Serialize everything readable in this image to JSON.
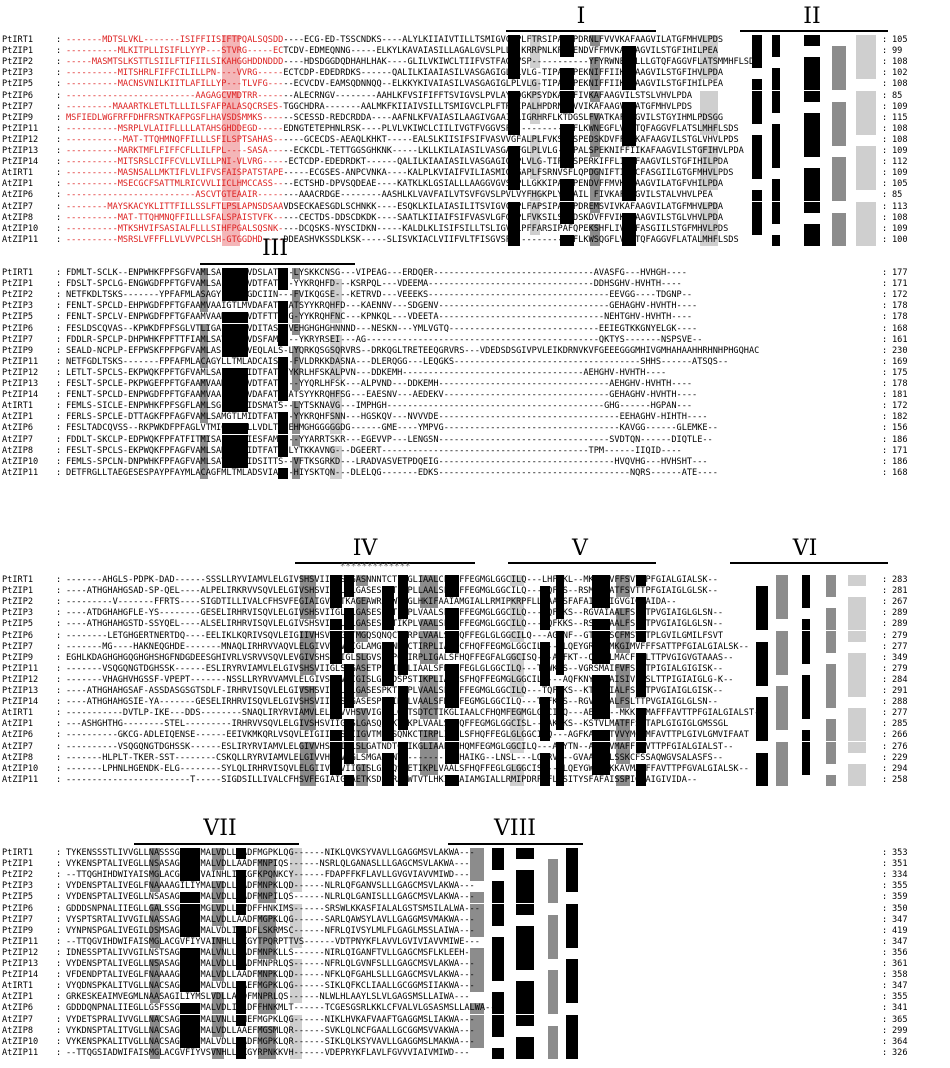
{
  "figure": {
    "domains": [
      "I",
      "II",
      "III",
      "IV",
      "V",
      "VI",
      "VII",
      "VIII"
    ],
    "sequence_names": [
      "PtIRT1",
      "PtZIP1",
      "PtZIP2",
      "PtZIP3",
      "PtZIP5",
      "PtZIP6",
      "PtZIP7",
      "PtZIP9",
      "PtZIP11",
      "PtZIP12",
      "PtZIP13",
      "PtZIP14",
      "AtIRT1",
      "AtZIP1",
      "AtZIP6",
      "AtZIP7",
      "AtZIP8",
      "AtZIP10",
      "AtZIP11"
    ],
    "blocks": [
      {
        "rows": [
          {
            "name": "PtIRT1",
            "seq": "-------MDTSLVKL-------ISIFFIISIFTPQALSQSDD----ECG-ED-TSSCNDKS----ALYLKIIAIVTILLTSMIGVCLPLFTRSIPALHPDRNLFVVVKAFAAGVILATGFMHVLPDS",
            "num": "105"
          },
          {
            "name": "PtZIP1",
            "seq": "----------MLKITPLLISIFLLYYP---STVRG-----ECTCDV-EDMEQNNG-----ELKYLKAVAIASILLAGALGVSLPLLG-KRRPNLKP--ENDVFFMVKAFAAGVILSTGFIHILPEA",
            "num": "99"
          },
          {
            "name": "PtZIP2",
            "seq": "-----MASMTSLKSTTLSIILFTIFIILSIKAHGGHDDNDDD----HDSDGGDQDHAHLHAK----GLILVKIWCLTIIFVSTFAGGVSP-----------YFYRWNESFLLLGTQFAGGVFLATSMMHFLSDS",
            "num": "108"
          },
          {
            "name": "PtZIP3",
            "seq": "----------MITSHRLFIFFCILILLPN----VVRG-----ECTCDP-EDEDRDKS------QALILKIAAIASILVASGAGIGLPLVLG-TIPALSPEKNIFFIIKAFAAGVILSTGFIHVLPDA",
            "num": "102"
          },
          {
            "name": "PtZIP5",
            "seq": "----------MACNSVNILKIITLAFILLYP---TLVFG-----ECVCDV-EAMSQDNNQQ--ELKKYKIVAIASILVASGAGIGLPLVLG-TIPALSPEKNIFFIIKAFAAGVILSTGFIHILPEA",
            "num": "108"
          },
          {
            "name": "PtZIP6",
            "seq": "-------------------------AAGAGCVMDTRR-------ALECRNGV--------AAHLKFVSIFIFFTSVIGVSLPVLAYLQGKPSYDKATLFIVKAFAAGVILSTSLVHVLPDA",
            "num": "85"
          },
          {
            "name": "PtZIP7",
            "seq": "---------MAAARTKLETLTLLLILSFAFPALASQCRSES-TGGCHDRA-------AALMKFKIIAIVSILLTSMIGVCLPLFTRSIPALHPDRNLFVVIKAFAAGVILATGFMHVLPDS",
            "num": "109"
          },
          {
            "name": "PtZIP9",
            "seq": "MSFIEDLWGFRFFDHFRSNTKAFPGSFLHAVSDSMMKS------SCESSD-REDCRDDA----AAFNLKFVAIASILAAGIVGAAIPLIGRHRFLKTDGSLFVATKAFAAGVILSTGYIHMLPDSGG",
            "num": "115"
          },
          {
            "name": "PtZIP11",
            "seq": "----------MSRPLVLAIIFLLLLATAHSGHDDEGD-----EDNGTETEPHNLRSK----PLVLVKIWCLCIILIVGTFVGGVSP-----------YFLKWNEGFLVLGTQFAGGVFLATSLMHFLSDS",
            "num": "108"
          },
          {
            "name": "PtZIP12",
            "seq": "-----------MAT-TTQHMNQFFILLLSFILSPTSAHAS------GCECDS-AEAQLKHKT-----EALSLKIISIFSIFVASVVGFALPLFVKSYLSPEDSKDVFFMIKAFAAGVILSTGLVHVLPDS",
            "num": "108"
          },
          {
            "name": "PtZIP13",
            "seq": "----------MARKTMFLFIFFCFLLILFPL----SASA-----ECKCDL-TETTGGSGHKNK-----LKLLKILAIASILVASGAGFGLPLVLG-TIPALSPEKNIFFIIKAFAAGVILSTGFIHVLPDA",
            "num": "109"
          },
          {
            "name": "PtZIP14",
            "seq": "----------MITSRSLCIFFCVLLVILLPNI-VLVRG-----ECTCDP-EDEDRDKT------QALILKIAAIASILVASGAGIGLPLVLG-TIPALSPERKIFFLIKAFAAGVILSTGFIHILPDA",
            "num": "112"
          },
          {
            "name": "AtIRT1",
            "seq": "----------MASNSALLMKTIFLVLIFVSFAISPATSTAPE-----ECGSES-ANPCVNKA----KALPLKVIAIFVILIASMIGVGAPLFSRNVSFLQPDGNIFTIIKCFASGIILGTGFMHVLPDS",
            "num": "109"
          },
          {
            "name": "AtZIP1",
            "seq": "----------MSECGCFSATTMLRICVVLIICLHMCCASS----ECTSHD-DPVSQDEAE----KATKLKLGSIALLLAAGGVGVSLPLLGKKIPALKPENDVFFMVKAFAAGVILATGFVHILPDA",
            "num": "105"
          },
          {
            "name": "AtZIP6",
            "seq": "-------------------------ASCVTGTEAAIR--------AAACRDGE--------AASHLKLVAVFAILVTSVFGVSLPVLVYFHGKPLYDKAIL FIVKAFAAGVILSTALVHVLPEA",
            "num": "85"
          },
          {
            "name": "AtZIP7",
            "seq": "--------MAYSKACYKLITTFILLSSLFTLPSLAPNSDSAAVDSECKAESGDLSCHNKK----ESQKLKILAIASILITSVIGVCLPLFAPSIPALGPDREMSVIVKAFAAGVILATGFMHVLPDA",
            "num": "113"
          },
          {
            "name": "AtZIP8",
            "seq": "----------MAT-TTQHMNQFFILLLSFALSPAISTVFK-----CECTDS-DDSCDKDK----SAATLKIIAIFSIFVASVLGFGLPLFVKSILSPEDSKDVFFVIKCFAAGVILSTGLVHVLPDA",
            "num": "108"
          },
          {
            "name": "AtZIP10",
            "seq": "----------MTKSHVIFSASIALFLLLSIHFPGALSQSNK----DCQSKS-NYSCIDKN-----KALDLKLISIFSILLTSLIGVCLPFFARSIPAFQPEKSHFLIVKSFASGIILSTGFMHVLPDS",
            "num": "109"
          },
          {
            "name": "AtZIP11",
            "seq": "----------MSRSLVFFFLLVLVVPCLSH-GTGGDHD----DDEASHVKSSDLKSK-----SLISVKIACLVIIFVLTFISGVSP-----------YFLKWSQGFLVLGTQFAGGVFLATALMHFLSDS",
            "num": "100"
          }
        ]
      },
      {
        "rows": [
          {
            "name": "PtIRT1",
            "seq": "FDMLT-SCLK--ENPWHKFPFSGFVAMLSAIATLMVDSLATS--LYSKKCNSG---VIPEAG---ERDQER-------------------------------AVASFG---HVHGH----",
            "num": "177"
          },
          {
            "name": "PtZIP1",
            "seq": "FDSLT-SPCLG-ENGWGDFPFTGFVAMLSAIGTLMVDTFATA--YYKRQHFD---KSRPQL---VDEEMA--------------------------------DDHSGHV-HVHTH----",
            "num": "171"
          },
          {
            "name": "PtZIP2",
            "seq": "NETFKDLTSKS-------YPFAFMLASAGYLLTMFGDCIIN---FVIKQGSE---KETRVD---VEEEKS-----------------------------------EEVGG----TDGNP--",
            "num": "172"
          },
          {
            "name": "PtZIP3",
            "seq": "FENLT-SPCLD-EHPWGDFPFTGFAAMVAAIGTLMVDAFATSYATSYYKRQHFD---KAENNV---SDGENV---------------------------------GEHAGHV-HVHTH----",
            "num": "178"
          },
          {
            "name": "PtZIP5",
            "seq": "FENLT-SPCLV-ENPWGDFPFTGFAAMVAAMGTLMVDTFTT--G-YYKRQHFNC---KPNKQL---VDEETA--------------------------------NEHTGHV-HVHTH----",
            "num": "178"
          },
          {
            "name": "PtZIP6",
            "seq": "FESLDSCQVAS--KPWKDFPFSGLVTLIGALLALLVDITASAHVEHGHGHGHNNND---NESKN---YMLVGTQ-----------------------------EEIEGTKKGNYELGK----",
            "num": "168"
          },
          {
            "name": "PtZIP7",
            "seq": "FDDLR-SPCLP-DHPWHKFPFTTFIAMLSAVFTLMVDSFAMI---YKRYRSEI---AG---------------------------------------------QKTYS-------NSPSVE--",
            "num": "161"
          },
          {
            "name": "PtZIP9",
            "seq": "SEALD-NCPLP-EFPWSKFPFPGFVAMLASLAALMVEQLALS-LYQRKQSGSQRVRS--DRKQGLTRETEEQGRVRS---VDEDSDSGIVPVLEIKDRNVKVFGEEEGGGMHIVGMHAHAAHHRHNHPHGQHAC",
            "num": "230"
          },
          {
            "name": "PtZIP11",
            "seq": "NETFGDLTSKS-------FPFAFMLACAGYLLTMLADCAIS---FVLDRKKDASNA---DLERQGG---LEQGKS------------------------------------SHHS------ATSQS--",
            "num": "169"
          },
          {
            "name": "PtZIP12",
            "seq": "LETLT-SPCLS-EKPWQKFPFTGFVAMLSAIGTLMIDTFATGYYKRLHFSKALPVN---DDKEMH-----------------------------------AEHGHV-HVHTH----",
            "num": "175"
          },
          {
            "name": "PtZIP13",
            "seq": "FESLT-SPCLE-PKPWGEFPFTGFAAMVAAMGTLMVDTFATS---YYQRLHFSK---ALPVND---DDKEMH---------------------------------AEHGHV-HVHTH----",
            "num": "178"
          },
          {
            "name": "PtZIP14",
            "seq": "FENLT-SPCLD-ENPWGDFPFTGFAAMVAAIGTLMVDAFATSYATSYYKRQHFSG---EAESNV---AEDEKV--------------------------------GEHAGHV-HVHTH----",
            "num": "181"
          },
          {
            "name": "AtIRT1",
            "seq": "FEMLS-SICLE-ENPWHKFPFSGFLAMLSGLITLAIDSMATS--LYTSKNAVG---IMPHGH------------------------------------------GHG------HGPAN---",
            "num": "172"
          },
          {
            "name": "AtZIP1",
            "seq": "FERLS-SPCLE-DTTAGKFPFAGFVAMLSAMGTLMIDTFATG--YYKRQHFSNN---HGSKQV---NVVVDE-----------------------------------EEHAGHV-HIHTH----",
            "num": "182"
          },
          {
            "name": "AtZIP6",
            "seq": "FESLTADCQVSS--RKPWKDFPFAGLVTMIGAILALLVDLTASEHMGHGGGGGDG------GME----YMPVG----------------------------------KAVGG------GLEMKE--",
            "num": "156"
          },
          {
            "name": "AtZIP7",
            "seq": "FDDLT-SKCLP-EDPWQKFPFATFITMISALLVLMIESFAMC---YYARRTSKR---EGEVVP---LENGSN---------------------------------SVDTQN------DIQTLE--",
            "num": "186"
          },
          {
            "name": "AtZIP8",
            "seq": "FESLT-SPCLS-EKPWQKFPFAGFVAMLSAMGTLMIDTFATG-LYTKKAVNG---DGEERT----------------------------------------TPM------IIQID----",
            "num": "171"
          },
          {
            "name": "AtZIP10",
            "seq": "FEMLS-SPCLN-DNPWHKFPFAGFVAMLSAVATLMIDSITTS--VFTKSGRKD---LRADVASVETPDQEIG----------------------------------HVQVHG---HVHSHT---",
            "num": "186"
          },
          {
            "name": "AtZIP11",
            "seq": "DETFRGLLTAEGESESPAYPFAYMLACAGFMLTMLADSVIA---HIYSKTQN---DLELQG-------EDKS-------------------------------------NQRS------ATE----",
            "num": "168"
          }
        ]
      },
      {
        "rows": [
          {
            "name": "PtIRT1",
            "seq": "-------AHGLS-PDPK-DAD------SSSLLRYVIAMVLELGIVSHSVIIGLSLGASNNNTCTIKGLIAALCFHQFFEGMGLGGCILQ---LHFYKL--MKRLVVFFSVTTPFGIALGIALSK--",
            "num": "283"
          },
          {
            "name": "PtZIP1",
            "seq": "----ATHGHAHGSAD-SP-QEL----ALPELIRKRVVSQVLELGIVSHSVIIGLSLGASESLDTIKPLLAALSFHQFFEGMGLGGCILQ---SQFKS--RSMAIAATFSVTTPFGIAIGLGLSK--",
            "num": "281"
          },
          {
            "name": "PtZIP2",
            "seq": "---------V-------FFRTS----SIGDTILLIVALCFHSVFEGIAIGVAETKAGEAWRNLWTIGLHKIFAAIAMGIALLRMIPKRPFLLTAAYSFAFAISSPIGVGIGIAIDA--",
            "num": "267"
          },
          {
            "name": "PtZIP3",
            "seq": "----ATDGHAHGFLE-YS--------GESELIRHRVISQVLELGIVSHSVIIGLSLGASESPKTIKPLVAALSFHQFFEGMGLGGCILQ---TQFRKS--RGVAIAALFSLTTPVGIAIGLGLSN--",
            "num": "289"
          },
          {
            "name": "PtZIP5",
            "seq": "----ATHGHAHGSTD-SSYQEL----ALSELIRHRVISQVLELGIVSHSVIIGLSLGASESPKTIKPLVAALSFHQFFEGMGLGGCILQ---TQFKKS--RSMAIAALFSLTTPVGIAIGLGLSN--",
            "num": "289"
          },
          {
            "name": "PtZIP6",
            "seq": "--------LETGHGERTNERTDQ----EELIKLKQRIVSQVLEIGIIVHSVIIGITMGQSQNQCTIRPLVAALSFHQFFEGLGLGGCILQ---AGFNF--GTVAYSCFMSVTTPLGVILGMILFSVT",
            "num": "279"
          },
          {
            "name": "PtZIP7",
            "seq": "-------MG----HAKNEQGHDE-------MNAQLIRHRVVAQVLELGIVVHSVVIGLAMGASNNPCTIRPLIAALCFHQFFEGMGLGGCILQ---LQEYGR--KMKGIMVFFFSATTPFGIALGIALSK--",
            "num": "277"
          },
          {
            "name": "PtZIP9",
            "seq": "EGHLKDAGHGHGQGHGHSHGFNDGDEESGHIVRLVSRVVSQVLEVGIVSHSVIIGLSLGVSQSPCTIRPLIGALSFHQFFEGFALGGCISQ---AQFKT--QSATLMACFFALTTPVGIGVGTAAAS--",
            "num": "349"
          },
          {
            "name": "PtZIP11",
            "seq": "-------VSQGQNGTDGHSSK------ESLIRYRVIAMVLELGIVSHSVIIGLSLGASETPKTIKPLIAALSFHQFFEGLGLGGCILQ---TDWKRS--VGRSMAIFVFSLTTPIGIALGIGISK--",
            "num": "279"
          },
          {
            "name": "PtZIP12",
            "seq": "-------VHAGHVHGSSF-VPEPT-------NSSLLRYRVVAMVLELGIVSHSVIIGISLGASDSPSTIKPLIAALSFHQFFEGMGLGGCILQ---AQFKNY--TAISIVFFSLTTPIGIAIGLG-K--",
            "num": "284"
          },
          {
            "name": "PtZIP13",
            "seq": "----ATHGHAHGSAF-ASSDASGSGTSDLF-IRHRVISQVLELGIVSHSVIIGLSLGASESPKTIKPLVAALSFHQFFEGMGLGGCILQ---TQFKKS--KTIVAIALFSLTTPVGIAIGLGISK--",
            "num": "291"
          },
          {
            "name": "PtZIP14",
            "seq": "----ATHGHAHGSIE-YA-------GESELIRHRVISQVLELGIVSHSVIIGLSLGASESPKTIKPLVAALSFHQFFEGMGLGGCILQ---TQFKKS--RGVAIAALFSLTTPVGIAIGLGLSN--",
            "num": "288"
          },
          {
            "name": "AtIRT1",
            "seq": "-----------DVTLP-IKE---DDS--------SNAQLIRYRVIAMVLELGIVVHSVVIGLSLGATSDTCTIKGLIAALCFHQMFEGMGLGGCILQ---AEYTN--MKKFVMAFFFAVTTPFGIALGIALST--",
            "num": "277"
          },
          {
            "name": "AtZIP1",
            "seq": "---ASHGHTHG--------STEL---------IRHRVVSQVLELGIVSHSVIIGLSLGASQSPKTIKPLVAALSFHQFFEGMGLGGCISL---AKMKS--KSTVLMATFFSVTAPLGIGIGLGMSSGL",
            "num": "285"
          },
          {
            "name": "AtZIP6",
            "seq": "----------GKCG-ADLEIQENSE------EEIVKMKQRLVSQVLEIGIIIHSVIIGVTMGMSQNKCTIRPLIAALSFHQFFEGLGLGGCIAQ---AGFKA--GTVVYMCLMFAVTTPLGIVLGMVIFAAT",
            "num": "266"
          },
          {
            "name": "AtZIP7",
            "seq": "----------VSQGQNGTDGHSSK------ESLIRYRVIAMVLELGIVVHSVVIGLSLGATNDTCTIKGLIAALCFHQMFEGMGLGGCILQ---AEYTN--AKKFVMAFFFAVTTPFGIALGIALST--",
            "num": "276"
          },
          {
            "name": "AtZIP8",
            "seq": "-------HLPLT-TKER-SST--------CSKQLLRYRVIAMVLELGIVVHSVVIGLSMGASNNT-----------HAIKG--LNSL---LQFRVS--GVAAAQVLSSKCFSSAQWGVSALASFS--",
            "num": "229"
          },
          {
            "name": "AtZIP10",
            "seq": "-------LPHNLHGENDK-ELG--------SYLQLIRHRVISQVLELGIIVHSVIIGISLGASQSPETIKPLVAALSFHQFFEGLGLGGCISQ---LQEYGW--VKKAVMAFFFAVTTPFGVALGIALSK--",
            "num": "294"
          },
          {
            "name": "AtZIP11",
            "seq": "------------------------T-----SIGDSILLIVALCFHSVFEGIAIGVAETKSDAWRALWTVTLHKIFAAIAMGIALLRMIPDRPLFLSSITYSFAFAISSPIGVAIGIVIDA--",
            "num": "258"
          }
        ]
      },
      {
        "rows": [
          {
            "name": "PtIRT1",
            "seq": "TYKENSSSTLIVVGLLNASSSGILIYMALVDLLSADFMGPKLQG------NIKLQVKSYVAVLLGAGGMSVLAKWA---",
            "num": "353"
          },
          {
            "name": "PtZIP1",
            "seq": "VYKENSPTALIVEGLLNSASAGILIYMALVDLLAADFMNPIQS------NSRLQLGANASLLLGAGCMSVLAKWA---",
            "num": "351"
          },
          {
            "name": "PtZIP2",
            "seq": "--TTQGHIHDWIYAISMGLACGVFIYVAINHLIAKGFKPQNKCY------FDAPFFKFLAVLLGVGVIAVVMIWD---",
            "num": "334"
          },
          {
            "name": "PtZIP3",
            "seq": "VYDENSPTALIVEGLFNAAAAGILIYMALVDLLAADFMNPKLQD------NLRLQFGANVSLLLGAGCMSVLAKWA---",
            "num": "355"
          },
          {
            "name": "PtZIP5",
            "seq": "VYDENSPTALIVEGLLNSASAGILIYMALVDLLAADFMNPILQS------NLRLQLGANISLLLGAGCMSVLAKWA---",
            "num": "359"
          },
          {
            "name": "PtZIP6",
            "seq": "GDDDSNPNALIIEGLLGALSSGILIYMGLVDLLAVDFFHNKIMS------SRSWLKKASFIALALGSTSMSILALWA---",
            "num": "350"
          },
          {
            "name": "PtZIP7",
            "seq": "VYSPTSRTALIVVGILNASSAGLLNYMALVDLLAADFMGPKLQG------SARLQAWSYLAVLLGAGGMSVMAKWA---",
            "num": "347"
          },
          {
            "name": "PtZIP9",
            "seq": "VYNPNSPGALIVEGILDSMSAGILVYMALVDLIAADFLSKRMSC------NFRLQIVSYLMLFLGAGLMSSLAIWA---",
            "num": "419"
          },
          {
            "name": "PtZIP11",
            "seq": "--TTQGVIHDWIFAISMGLACGVFIYVAINHLLSKGYTPQRPTTVS------VDTPNYKFLAVVLGVIVIAVVMIWE---",
            "num": "347"
          },
          {
            "name": "PtZIP12",
            "seq": "IDNESSPTALIVVGILNSTSAGILIYMALVNLLSADFMNPKLLS------NIRLQIGANFTVLLGAGCMSFLKLEEH-",
            "num": "356"
          },
          {
            "name": "PtZIP13",
            "seq": "VYDENSPTALIVEGLLNSASAGILIYMALVDLLAADFMNPRLQS------NFRLQLGVNFSLLLGAGCMSVLAKWA---",
            "num": "361"
          },
          {
            "name": "PtZIP14",
            "seq": "VFDENDPTALIVEGLFNAAAAGILIYMALVDLLAADFMNPKLQD------NFKLQFGAHLSLLLGAGCMSVLAKWA---",
            "num": "358"
          },
          {
            "name": "AtIRT1",
            "seq": "VYQDNSPKALITVGLLNACSAGLLIYMALVDLLAAEFMGPKLQG------SIKLQFKCLIAALLGCGGMSIIAKWA---",
            "num": "347"
          },
          {
            "name": "AtZIP1",
            "seq": "GRKESKEAIMVEGMLNAASAGILIYMSLVDLLATDFMNPRLQS------NLWLHLAAYLSLVLGAGSMSLLAIWA---",
            "num": "355"
          },
          {
            "name": "AtZIP6",
            "seq": "GDDDQNPNALIIEGLLGSFSSGILIYMALVDLIALDFFHNKMLT------TCGESGSRLKKLCFVALVLGSASMSLLALWA---",
            "num": "341"
          },
          {
            "name": "AtZIP7",
            "seq": "VYDETSPRALIVVGLLNACSAGLLIYMALVNLLAHEFMGPKLQG------NIKLHVKAFVAAFTGAGGMSLIAKWA---",
            "num": "365"
          },
          {
            "name": "AtZIP8",
            "seq": "VYKDNSPTALITVGLLNACSAGLLIYMALVDLLAAEFMGSMLQR------SVKLQLNCFGAALLGCGGMSVVAKWA---",
            "num": "299"
          },
          {
            "name": "AtZIP10",
            "seq": "VYKENSPKALITVGLLNACSAGLLIYMALVDLLAADFMGPKLQR------SIKLQLKSYVAVLLGAGGMSLMAKWA---",
            "num": "364"
          },
          {
            "name": "AtZIP11",
            "seq": "--TTQGSIADWIFAISMGLACGVFIYVSVNHLLAKGYRPNKKVH------VDEPRYKFLAVLFGVVVIAIVMIWD---",
            "num": "326"
          }
        ]
      }
    ]
  }
}
